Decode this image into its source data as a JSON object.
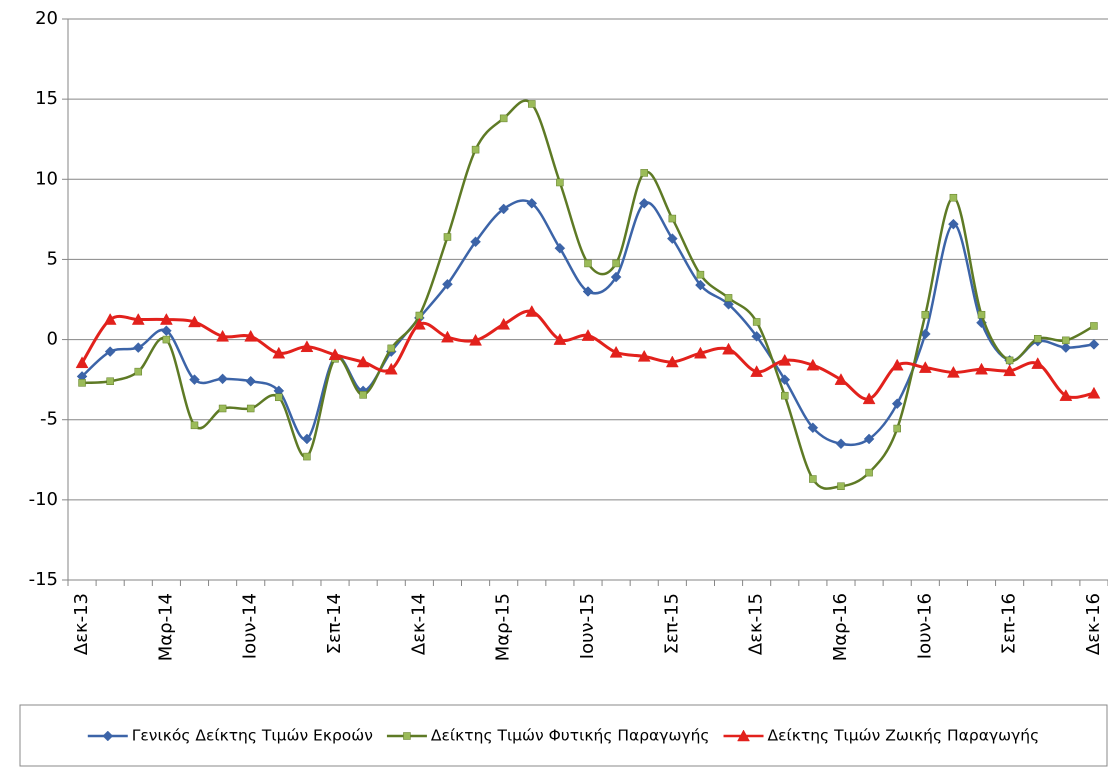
{
  "chart_data": {
    "type": "line",
    "categories": [
      "Δεκ-13",
      null,
      null,
      "Μαρ-14",
      null,
      null,
      "Ιουν-14",
      null,
      null,
      "Σεπ-14",
      null,
      null,
      "Δεκ-14",
      null,
      null,
      "Μαρ-15",
      null,
      null,
      "Ιουν-15",
      null,
      null,
      "Σεπ-15",
      null,
      null,
      "Δεκ-15",
      null,
      null,
      "Μαρ-16",
      null,
      null,
      "Ιουν-16",
      null,
      null,
      "Σεπ-16",
      null,
      null,
      "Δεκ-16"
    ],
    "series": [
      {
        "name": "Γενικός Δείκτης Τιμών Εκροών",
        "color": "#3c64a8",
        "marker": "diamond",
        "values": [
          -2.3,
          -0.75,
          -0.5,
          0.55,
          -2.5,
          -2.45,
          -2.6,
          -3.2,
          -6.2,
          -1.1,
          -3.2,
          -0.75,
          1.35,
          3.45,
          6.1,
          8.15,
          8.5,
          5.7,
          3.0,
          3.9,
          8.5,
          6.3,
          3.4,
          2.2,
          0.2,
          -2.5,
          -5.5,
          -6.5,
          -6.2,
          -4.0,
          0.35,
          7.2,
          1.05,
          -1.3,
          -0.1,
          -0.5,
          -0.3
        ]
      },
      {
        "name": "Δείκτης Τιμών Φυτικής Παραγωγής",
        "color": "#5e7a25",
        "marker": "square",
        "values": [
          -2.7,
          -2.6,
          -2.0,
          0.0,
          -5.35,
          -4.3,
          -4.3,
          -3.6,
          -7.3,
          -1.2,
          -3.45,
          -0.55,
          1.5,
          6.4,
          11.85,
          13.8,
          14.7,
          9.8,
          4.75,
          4.75,
          10.4,
          7.55,
          4.05,
          2.6,
          1.1,
          -3.5,
          -8.7,
          -9.15,
          -8.3,
          -5.55,
          1.55,
          8.85,
          1.55,
          -1.3,
          0.05,
          -0.05,
          0.85
        ]
      },
      {
        "name": "Δείκτης Τιμών Ζωικής Παραγωγής",
        "color": "#e2211c",
        "marker": "triangle",
        "values": [
          -1.45,
          1.25,
          1.25,
          1.25,
          1.1,
          0.2,
          0.2,
          -0.85,
          -0.45,
          -0.95,
          -1.4,
          -1.85,
          0.95,
          0.15,
          -0.05,
          0.95,
          1.75,
          0.0,
          0.25,
          -0.8,
          -1.05,
          -1.4,
          -0.85,
          -0.6,
          -2.0,
          -1.3,
          -1.6,
          -2.5,
          -3.7,
          -1.6,
          -1.75,
          -2.05,
          -1.85,
          -1.95,
          -1.5,
          -3.5,
          -3.35
        ]
      }
    ],
    "ylim": [
      -15,
      20
    ],
    "yticks": [
      -15,
      -10,
      -5,
      0,
      5,
      10,
      15,
      20
    ],
    "grid": true,
    "smooth": true,
    "legend": "bottom"
  }
}
